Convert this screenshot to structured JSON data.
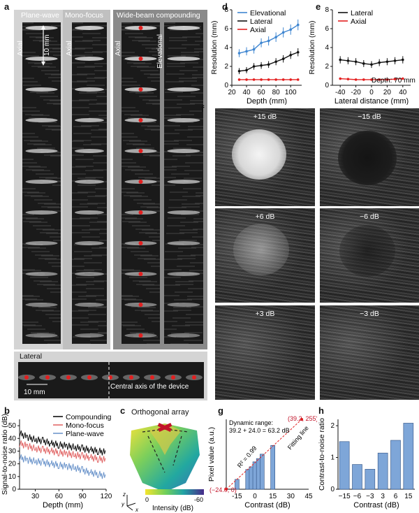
{
  "panel_a": {
    "label": "a",
    "headers": {
      "plane_wave": "Plane-wave",
      "mono_focus": "Mono-focus",
      "compounding": "Wide-beam compounding"
    },
    "axis_labels": {
      "axial": "Axial",
      "elevational": "Elevational",
      "lateral": "Lateral"
    },
    "scale_bar": "10 mm",
    "lateral_scale_bar": "10 mm",
    "central_axis": "Central axis of the device",
    "marker_color": "#e32020"
  },
  "panel_b": {
    "label": "b",
    "chart_data": {
      "type": "line",
      "ylabel": "Signal-to-noise ratio (dB)",
      "xlabel": "Depth (mm)",
      "xticks": [
        30,
        60,
        90,
        120
      ],
      "yticks": [
        0,
        10,
        20,
        30,
        40,
        50
      ],
      "xlim": [
        10,
        120
      ],
      "ylim": [
        0,
        55
      ],
      "legend_position": "top-right",
      "series": [
        {
          "name": "Compounding",
          "color": "#111111",
          "x": [
            10,
            20,
            30,
            40,
            50,
            60,
            70,
            80,
            90,
            100,
            110,
            120
          ],
          "values": [
            44,
            41,
            39,
            38,
            36,
            35,
            34,
            33,
            32,
            31,
            30,
            29
          ]
        },
        {
          "name": "Mono-focus",
          "color": "#e26a6a",
          "x": [
            10,
            20,
            30,
            40,
            50,
            60,
            70,
            80,
            90,
            100,
            110,
            120
          ],
          "values": [
            36,
            34,
            32,
            31,
            30,
            29,
            28,
            27,
            26,
            25,
            24,
            23
          ]
        },
        {
          "name": "Plane-wave",
          "color": "#6f97cc",
          "x": [
            10,
            20,
            30,
            40,
            50,
            60,
            70,
            80,
            90,
            100,
            110,
            120
          ],
          "values": [
            25,
            23,
            22,
            21,
            20,
            19,
            18,
            17,
            15,
            13,
            12,
            10
          ]
        }
      ]
    }
  },
  "panel_c": {
    "label": "c",
    "title": "Orthogonal array",
    "colorbar_label": "Intensity (dB)",
    "colorbar_ticks": [
      "0",
      "-60"
    ],
    "axes": [
      "z",
      "y",
      "x"
    ]
  },
  "panel_d": {
    "label": "d",
    "chart_data": {
      "type": "line",
      "xlabel": "Depth (mm)",
      "ylabel": "Resolution (mm)",
      "xticks": [
        20,
        40,
        60,
        80,
        100
      ],
      "yticks": [
        0,
        2,
        4,
        6,
        8
      ],
      "xlim": [
        20,
        115
      ],
      "ylim": [
        0,
        8
      ],
      "legend_position": "top-left",
      "series": [
        {
          "name": "Elevational",
          "color": "#3f86d1",
          "x": [
            30,
            40,
            50,
            60,
            70,
            80,
            90,
            100,
            110
          ],
          "values": [
            3.4,
            3.6,
            3.8,
            4.5,
            4.7,
            5.1,
            5.6,
            5.9,
            6.4
          ]
        },
        {
          "name": "Lateral",
          "color": "#111111",
          "x": [
            30,
            40,
            50,
            60,
            70,
            80,
            90,
            100,
            110
          ],
          "values": [
            1.5,
            1.6,
            2.0,
            2.1,
            2.2,
            2.5,
            2.8,
            3.2,
            3.5
          ]
        },
        {
          "name": "Axial",
          "color": "#e32020",
          "x": [
            30,
            40,
            50,
            60,
            70,
            80,
            90,
            100,
            110
          ],
          "values": [
            0.6,
            0.6,
            0.6,
            0.6,
            0.6,
            0.6,
            0.6,
            0.6,
            0.6
          ]
        }
      ]
    }
  },
  "panel_e": {
    "label": "e",
    "annotation": "Depth: 70 mm",
    "chart_data": {
      "type": "line",
      "xlabel": "Lateral distance (mm)",
      "ylabel": "Resolution (mm)",
      "xticks": [
        -40,
        -20,
        0,
        20,
        40
      ],
      "yticks": [
        0,
        2,
        4,
        6,
        8
      ],
      "xlim": [
        -50,
        50
      ],
      "ylim": [
        0,
        8
      ],
      "legend_position": "top-left",
      "series": [
        {
          "name": "Lateral",
          "color": "#111111",
          "x": [
            -40,
            -30,
            -20,
            -10,
            0,
            10,
            20,
            30,
            40
          ],
          "values": [
            2.7,
            2.6,
            2.5,
            2.3,
            2.2,
            2.4,
            2.5,
            2.6,
            2.7
          ]
        },
        {
          "name": "Axial",
          "color": "#e32020",
          "x": [
            -40,
            -30,
            -20,
            -10,
            0,
            10,
            20,
            30,
            40
          ],
          "values": [
            0.7,
            0.65,
            0.6,
            0.6,
            0.6,
            0.6,
            0.6,
            0.65,
            0.7
          ]
        }
      ]
    }
  },
  "panel_f": {
    "label": "f",
    "tiles": [
      "+15 dB",
      "−15 dB",
      "+6 dB",
      "−6 dB",
      "+3 dB",
      "−3 dB"
    ]
  },
  "panel_g": {
    "label": "g",
    "annotation_title": "Dynamic range:",
    "annotation_eq": "39.2 + 24.0 = 63.2 dB",
    "fit_label": "Fitting line",
    "r2_label": "R² = 0.99",
    "point_left": "(−24.0, 0)",
    "point_right": "(39.2, 255)",
    "chart_data": {
      "type": "bar",
      "xlabel": "Contrast (dB)",
      "ylabel": "Pixel value (a.u.)",
      "xticks": [
        -15,
        0,
        15,
        30,
        45
      ],
      "xlim": [
        -24,
        45
      ],
      "ylim": [
        0,
        255
      ],
      "categories": [
        -15,
        -6,
        -3,
        0,
        3,
        6,
        15
      ],
      "values": [
        36,
        72,
        82,
        100,
        112,
        128,
        160
      ],
      "fit": {
        "x": [
          -24.0,
          39.2
        ],
        "y": [
          0,
          255
        ],
        "color": "#e32020"
      }
    }
  },
  "panel_h": {
    "label": "h",
    "chart_data": {
      "type": "bar",
      "xlabel": "Contrast (dB)",
      "ylabel": "Contrast-to-noise ratio",
      "categories": [
        "−15",
        "−6",
        "−3",
        "3",
        "6",
        "15"
      ],
      "values": [
        1.5,
        0.78,
        0.63,
        1.14,
        1.54,
        2.08
      ],
      "ylim": [
        0,
        2.2
      ],
      "yticks": [
        0,
        1,
        2
      ],
      "bar_color": "#7ea6d8"
    }
  }
}
